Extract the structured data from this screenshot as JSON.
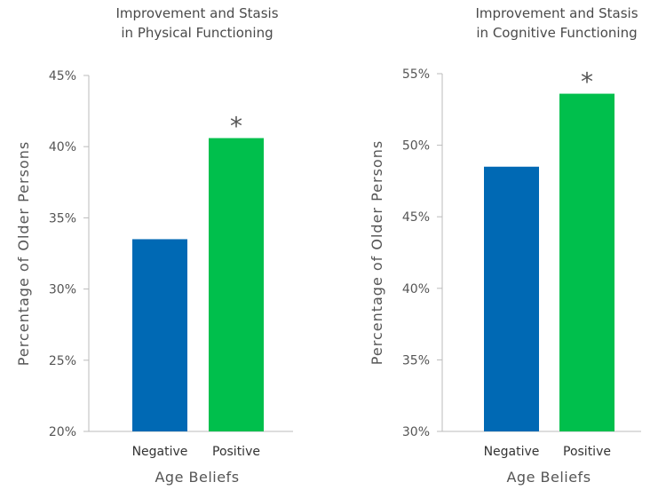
{
  "chart_data": [
    {
      "type": "bar",
      "title_lines": [
        "Improvement and Stasis",
        "in Physical Functioning"
      ],
      "xlabel": "Age Beliefs",
      "ylabel": "Percentage of Older Persons",
      "categories": [
        "Negative",
        "Positive"
      ],
      "values": [
        33.5,
        40.6
      ],
      "colors": [
        "#0069b4",
        "#00bf4c"
      ],
      "significance": [
        "",
        "*"
      ],
      "ylim": [
        20,
        45
      ],
      "yticks": [
        20,
        25,
        30,
        35,
        40,
        45
      ],
      "ytick_labels": [
        "20%",
        "25%",
        "30%",
        "35%",
        "40%",
        "45%"
      ],
      "grid": false,
      "legend": "none"
    },
    {
      "type": "bar",
      "title_lines": [
        "Improvement and Stasis",
        "in Cognitive Functioning"
      ],
      "xlabel": "Age Beliefs",
      "ylabel": "Percentage of Older Persons",
      "categories": [
        "Negative",
        "Positive"
      ],
      "values": [
        48.5,
        53.6
      ],
      "colors": [
        "#0069b4",
        "#00bf4c"
      ],
      "significance": [
        "",
        "*"
      ],
      "ylim": [
        30,
        55
      ],
      "yticks": [
        30,
        35,
        40,
        45,
        50,
        55
      ],
      "ytick_labels": [
        "30%",
        "35%",
        "40%",
        "45%",
        "50%",
        "55%"
      ],
      "grid": false,
      "legend": "none"
    }
  ]
}
